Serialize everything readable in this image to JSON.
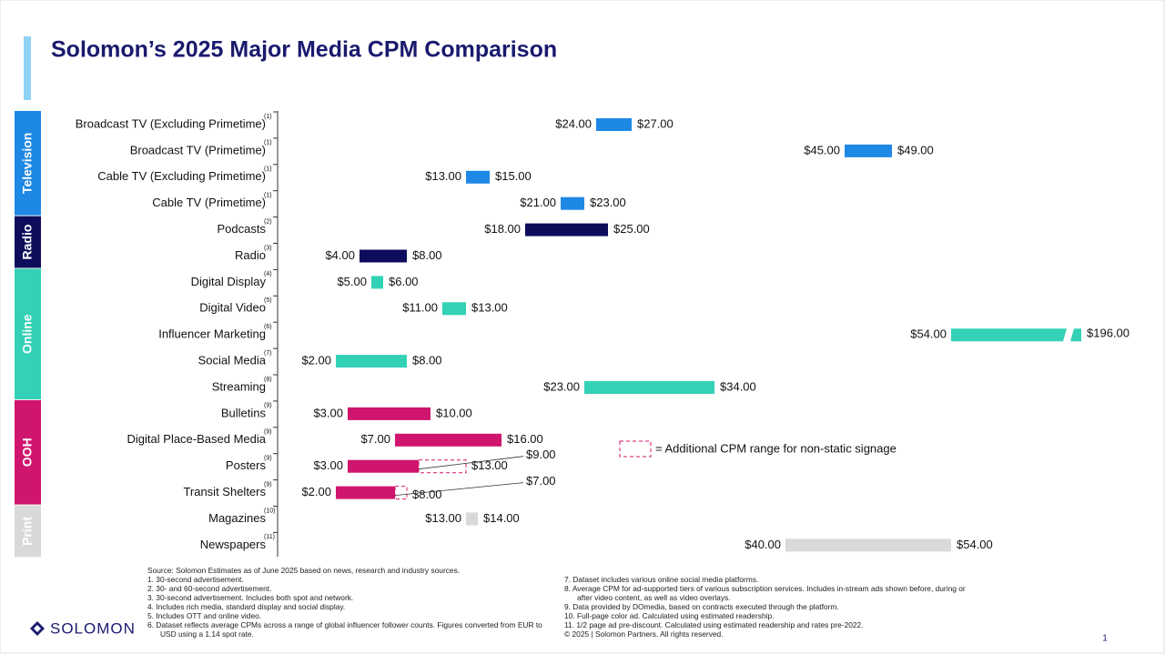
{
  "chart_data": {
    "type": "range-bar",
    "title": "Solomon’s 2025 Major Media CPM Comparison",
    "xlim": [
      0,
      65
    ],
    "legend": "= Additional CPM range for non-static signage",
    "series": [
      {
        "name": "Television",
        "color": "#1e88e5",
        "categories": [
          "Broadcast TV (Excluding Primetime)",
          "Broadcast TV (Primetime)",
          "Cable TV (Excluding Primetime)",
          "Cable TV (Primetime)"
        ],
        "notes": [
          "(1)",
          "(1)",
          "(1)",
          "(1)"
        ],
        "low": [
          24,
          45,
          13,
          21
        ],
        "low_labels": [
          "$24.00",
          "$45.00",
          "$13.00",
          "$21.00"
        ],
        "high": [
          27,
          49,
          15,
          23
        ],
        "high_labels": [
          "$27.00",
          "$49.00",
          "$15.00",
          "$23.00"
        ]
      },
      {
        "name": "Radio",
        "color": "#0d0d5c",
        "categories": [
          "Podcasts",
          "Radio"
        ],
        "notes": [
          "(2)",
          "(3)"
        ],
        "low": [
          18,
          4
        ],
        "low_labels": [
          "$18.00",
          "$4.00"
        ],
        "high": [
          25,
          8
        ],
        "high_labels": [
          "$25.00",
          "$8.00"
        ]
      },
      {
        "name": "Online",
        "color": "#33d1b5",
        "categories": [
          "Digital Display",
          "Digital Video",
          "Influencer Marketing",
          "Social Media",
          "Streaming"
        ],
        "notes": [
          "(4)",
          "(5)",
          "(6)",
          "(7)",
          "(8)"
        ],
        "low": [
          5,
          11,
          54,
          2,
          23
        ],
        "low_labels": [
          "$5.00",
          "$11.00",
          "$54.00",
          "$2.00",
          "$23.00"
        ],
        "high": [
          6,
          13,
          196,
          8,
          34
        ],
        "high_labels": [
          "$6.00",
          "$13.00",
          "$196.00",
          "$8.00",
          "$34.00"
        ]
      },
      {
        "name": "OOH",
        "color": "#d0156e",
        "categories": [
          "Bulletins",
          "Digital Place-Based Media",
          "Posters",
          "Transit Shelters"
        ],
        "notes": [
          "(9)",
          "(9)",
          "(9)",
          "(9)"
        ],
        "low": [
          3,
          7,
          3,
          2
        ],
        "low_labels": [
          "$3.00",
          "$7.00",
          "$3.00",
          "$2.00"
        ],
        "high": [
          10,
          16,
          9,
          7
        ],
        "high_labels": [
          "$10.00",
          "$16.00",
          "$9.00",
          "$7.00"
        ],
        "additional_high": [
          null,
          null,
          13,
          8
        ],
        "additional_high_labels": [
          null,
          null,
          "$13.00",
          "$8.00"
        ]
      },
      {
        "name": "Print",
        "color": "#d9d9d9",
        "categories": [
          "Magazines",
          "Newspapers"
        ],
        "notes": [
          "(10)",
          "(11)"
        ],
        "low": [
          13,
          40
        ],
        "low_labels": [
          "$13.00",
          "$40.00"
        ],
        "high": [
          14,
          54
        ],
        "high_labels": [
          "$14.00",
          "$54.00"
        ]
      }
    ]
  },
  "source": "Source: Solomon Estimates as of June 2025 based on news, research and industry sources.",
  "footnotes": [
    "1.   30-second advertisement.",
    "2.   30- and 60-second advertisement.",
    "3.   30-second advertisement. Includes both spot and network.",
    "4.   Includes rich media, standard display and social display.",
    "5.   Includes OTT and online video.",
    "6.   Dataset reflects average CPMs across a range of global influencer follower counts. Figures converted from EUR to USD using a 1.14 spot rate.",
    "7.   Dataset includes various online social media platforms.",
    "8.   Average CPM for ad-supported tiers of various subscription services. Includes in-stream ads shown before, during or after video content, as well as video overlays.",
    "9.   Data provided by DOmedia, based on contracts executed through the platform.",
    "10. Full-page color ad. Calculated using estimated readership.",
    "11. 1/2 page ad pre-discount. Calculated using estimated readership and rates pre-2022."
  ],
  "copyright": "© 2025 | Solomon Partners. All rights reserved.",
  "logo": "SOLOMON",
  "page_number": "1"
}
